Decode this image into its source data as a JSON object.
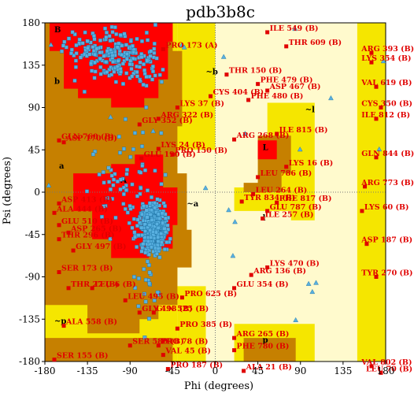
{
  "chart_data": {
    "type": "scatter",
    "title": "pdb3b8c",
    "xlabel": "Phi (degrees)",
    "ylabel": "Psi (degrees)",
    "xlim": [
      -180,
      180
    ],
    "ylim": [
      -180,
      180
    ],
    "x_ticks": [
      "-180",
      "-135",
      "-90",
      "-45",
      "0",
      "45",
      "90",
      "135",
      "180"
    ],
    "y_ticks": [
      "180",
      "135",
      "90",
      "45",
      "0",
      "-45",
      "-90",
      "-135",
      "-180"
    ],
    "x_tick_values": [
      -180,
      -135,
      -90,
      -45,
      0,
      45,
      90,
      135,
      180
    ],
    "y_tick_values": [
      180,
      135,
      90,
      45,
      0,
      -45,
      -90,
      -135,
      -180
    ],
    "grid": "dotted lines at phi=0 and psi=0",
    "colors": {
      "disallowed": "#fffacd",
      "generous": "#f5e600",
      "allowed": "#c68000",
      "core": "#ff0000",
      "residue_points": "#58b0e0",
      "glycine_points": "#58b0e0",
      "outlier_points": "#e00000",
      "label_text": "#e00000"
    },
    "region_labels": [
      "B",
      "b",
      "A",
      "a",
      "L",
      "l",
      "p",
      "~b",
      "~a",
      "~l",
      "~p"
    ],
    "labeled_residues": [
      {
        "label": "ILE 549 (B)",
        "phi": 55,
        "psi": 170
      },
      {
        "label": "THR 609 (B)",
        "phi": 75,
        "psi": 155
      },
      {
        "label": "ARG 393 (B)",
        "phi": 165,
        "psi": 148
      },
      {
        "label": "LYS 354 (B)",
        "phi": 165,
        "psi": 138
      },
      {
        "label": "PRO 173 (A)",
        "phi": -55,
        "psi": 152
      },
      {
        "label": "THR 150 (B)",
        "phi": 12,
        "psi": 125
      },
      {
        "label": "PHE 479 (B)",
        "phi": 45,
        "psi": 115
      },
      {
        "label": "ASP 467 (B)",
        "phi": 55,
        "psi": 108
      },
      {
        "label": "CYS 404 (B)",
        "phi": -5,
        "psi": 102
      },
      {
        "label": "PHE 480 (B)",
        "phi": 35,
        "psi": 98
      },
      {
        "label": "VAL 619 (B)",
        "phi": 170,
        "psi": 112
      },
      {
        "label": "LYS 37 (B)",
        "phi": -40,
        "psi": 90
      },
      {
        "label": "CYS 350 (B)",
        "phi": 175,
        "psi": 90
      },
      {
        "label": "ARG 322 (B)",
        "phi": -60,
        "psi": 78
      },
      {
        "label": "GLY 352 (B)",
        "phi": -80,
        "psi": 72
      },
      {
        "label": "ILE 812 (B)",
        "phi": 170,
        "psi": 78
      },
      {
        "label": "ILE 815 (B)",
        "phi": 65,
        "psi": 62
      },
      {
        "label": "ARG 268 (B)",
        "phi": 20,
        "psi": 56
      },
      {
        "label": "GLN 760 (B)",
        "phi": -165,
        "psi": 55
      },
      {
        "label": "ASP 170 (B)",
        "phi": -160,
        "psi": 53
      },
      {
        "label": "LYS 24 (B)",
        "phi": -60,
        "psi": 46
      },
      {
        "label": "PRO 150 (B)",
        "phi": -45,
        "psi": 40
      },
      {
        "label": "GLU 190 (B)",
        "phi": -78,
        "psi": 36
      },
      {
        "label": "GLN 844 (B)",
        "phi": 170,
        "psi": 37
      },
      {
        "label": "LYS 16 (B)",
        "phi": 75,
        "psi": 27
      },
      {
        "label": "LEU 786 (B)",
        "phi": 45,
        "psi": 16
      },
      {
        "label": "ARG 773 (B)",
        "phi": 158,
        "psi": 6
      },
      {
        "label": "LEU 264 (B)",
        "phi": 40,
        "psi": -2
      },
      {
        "label": "TYR 834 (B)",
        "phi": 28,
        "psi": -10
      },
      {
        "label": "PHE 817 (B)",
        "phi": 65,
        "psi": -11
      },
      {
        "label": "GLU 787 (B)",
        "phi": 55,
        "psi": -20
      },
      {
        "label": "ILE 257 (B)",
        "phi": 50,
        "psi": -28
      },
      {
        "label": "ASP 413 (B)",
        "phi": -165,
        "psi": -12
      },
      {
        "label": "ALA 444 (B)",
        "phi": -170,
        "psi": -22
      },
      {
        "label": "GLU 510 (B)",
        "phi": -165,
        "psi": -35
      },
      {
        "label": "ASP 265 (B)",
        "phi": -155,
        "psi": -43
      },
      {
        "label": "THR 296 (B)",
        "phi": -165,
        "psi": -50
      },
      {
        "label": "GLY 497 (B)",
        "phi": -150,
        "psi": -62
      },
      {
        "label": "LYS 60 (B)",
        "phi": 155,
        "psi": -20
      },
      {
        "label": "ASP 187 (B)",
        "phi": 160,
        "psi": -55
      },
      {
        "label": "LYS 470 (B)",
        "phi": 55,
        "psi": -80
      },
      {
        "label": "ARG 136 (B)",
        "phi": 38,
        "psi": -88
      },
      {
        "label": "SER 173 (B)",
        "phi": -165,
        "psi": -85
      },
      {
        "label": "TYR 270 (B)",
        "phi": 170,
        "psi": -90
      },
      {
        "label": "THR 27 (B)",
        "phi": -155,
        "psi": -102
      },
      {
        "label": "LEU 6 (B)",
        "phi": -130,
        "psi": -102
      },
      {
        "label": "GLU 354 (B)",
        "phi": 20,
        "psi": -102
      },
      {
        "label": "PRO 625 (B)",
        "phi": -35,
        "psi": -112
      },
      {
        "label": "LEU 495 (B)",
        "phi": -95,
        "psi": -115
      },
      {
        "label": "GLY 498 (B)",
        "phi": -80,
        "psi": -128
      },
      {
        "label": "GLN 525 (B)",
        "phi": -65,
        "psi": -128
      },
      {
        "label": "ALA 558 (B)",
        "phi": -160,
        "psi": -142
      },
      {
        "label": "PRO 385 (B)",
        "phi": -40,
        "psi": -145
      },
      {
        "label": "ARG 265 (B)",
        "phi": 20,
        "psi": -155
      },
      {
        "label": "SER 580 (B)",
        "phi": -90,
        "psi": -163
      },
      {
        "label": "PRO 78 (B)",
        "phi": -60,
        "psi": -163
      },
      {
        "label": "PHE 780 (B)",
        "phi": 20,
        "psi": -168
      },
      {
        "label": "VAL 45 (B)",
        "phi": -55,
        "psi": -173
      },
      {
        "label": "SER 155 (B)",
        "phi": -170,
        "psi": -178
      },
      {
        "label": "PRO 187 (B)",
        "phi": -50,
        "psi": -188
      },
      {
        "label": "ALA 21 (B)",
        "phi": 30,
        "psi": -190
      },
      {
        "label": "VAL 802 (B)",
        "phi": 165,
        "psi": -185
      },
      {
        "label": "LEU 70 (B)",
        "phi": 175,
        "psi": -192
      }
    ]
  }
}
